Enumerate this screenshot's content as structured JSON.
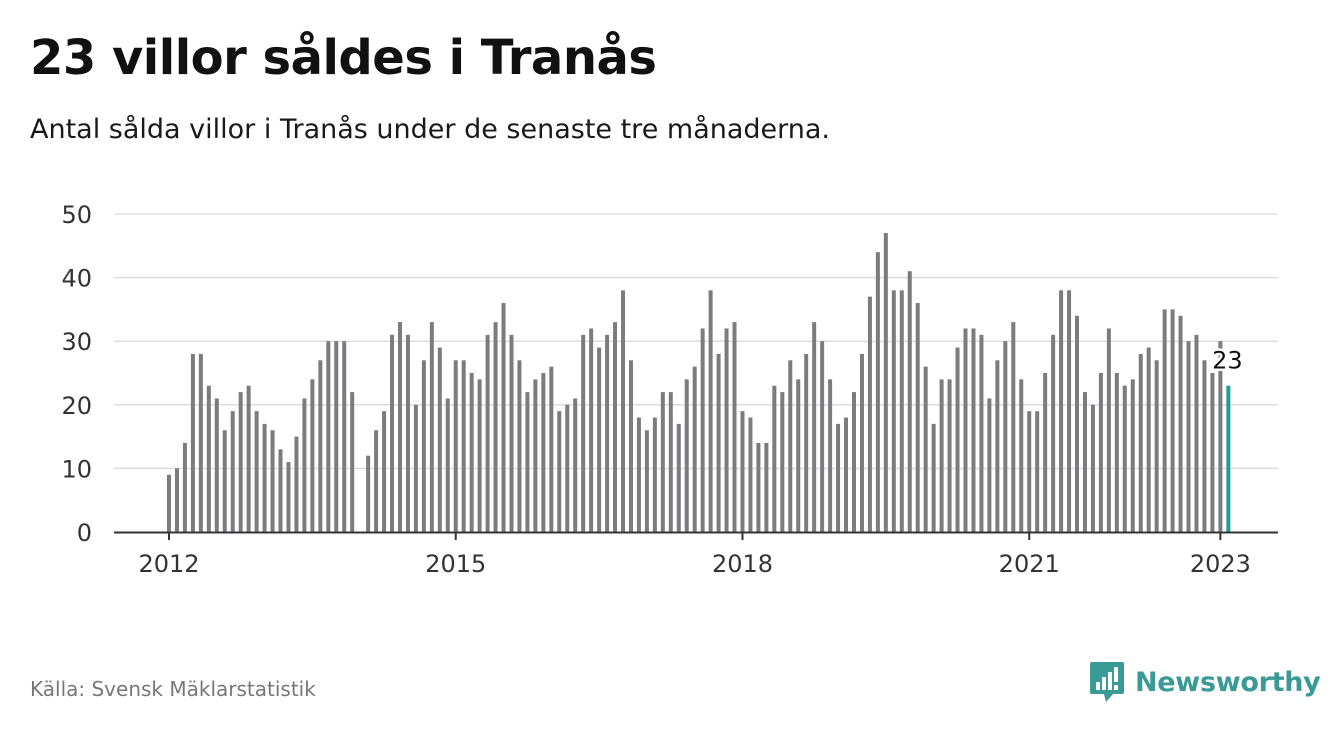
{
  "header": {
    "title": "23 villor såldes i Tranås",
    "subtitle": "Antal sålda villor i Tranås under de senaste tre månaderna."
  },
  "footer": {
    "source": "Källa: Svensk Mäklarstatistik",
    "brand": "Newsworthy",
    "brand_icon": "bar-chart-bubble-icon"
  },
  "colors": {
    "bars": "#7b7b80",
    "highlight": "#1f9e96",
    "grid": "#dddddd",
    "axis": "#333333",
    "brand": "#3a9a95"
  },
  "chart_data": {
    "type": "bar",
    "title": "",
    "xlabel": "",
    "ylabel": "",
    "ylim": [
      0,
      50
    ],
    "yticks": [
      0,
      10,
      20,
      30,
      40,
      50
    ],
    "xticks": [
      "2012",
      "2015",
      "2018",
      "2021",
      "2023"
    ],
    "grid": true,
    "legend": "none",
    "first_month": "2012-01",
    "last_month": "2023-01",
    "highlight_label": "23",
    "values": [
      9,
      10,
      14,
      28,
      28,
      23,
      21,
      16,
      19,
      22,
      23,
      19,
      17,
      16,
      13,
      11,
      15,
      21,
      24,
      27,
      30,
      30,
      30,
      22,
      null,
      12,
      16,
      19,
      31,
      33,
      31,
      20,
      27,
      33,
      29,
      21,
      27,
      27,
      25,
      24,
      31,
      33,
      36,
      31,
      27,
      22,
      24,
      25,
      26,
      19,
      20,
      21,
      31,
      32,
      29,
      31,
      33,
      38,
      27,
      18,
      16,
      18,
      22,
      22,
      17,
      24,
      26,
      32,
      38,
      28,
      32,
      33,
      19,
      18,
      14,
      14,
      23,
      22,
      27,
      24,
      28,
      33,
      30,
      24,
      17,
      18,
      22,
      28,
      37,
      44,
      47,
      38,
      38,
      41,
      36,
      26,
      17,
      24,
      24,
      29,
      32,
      32,
      31,
      21,
      27,
      30,
      33,
      24,
      19,
      19,
      25,
      31,
      38,
      38,
      34,
      22,
      20,
      25,
      32,
      25,
      23,
      24,
      28,
      29,
      27,
      35,
      35,
      34,
      30,
      31,
      27,
      25,
      30,
      23
    ]
  }
}
